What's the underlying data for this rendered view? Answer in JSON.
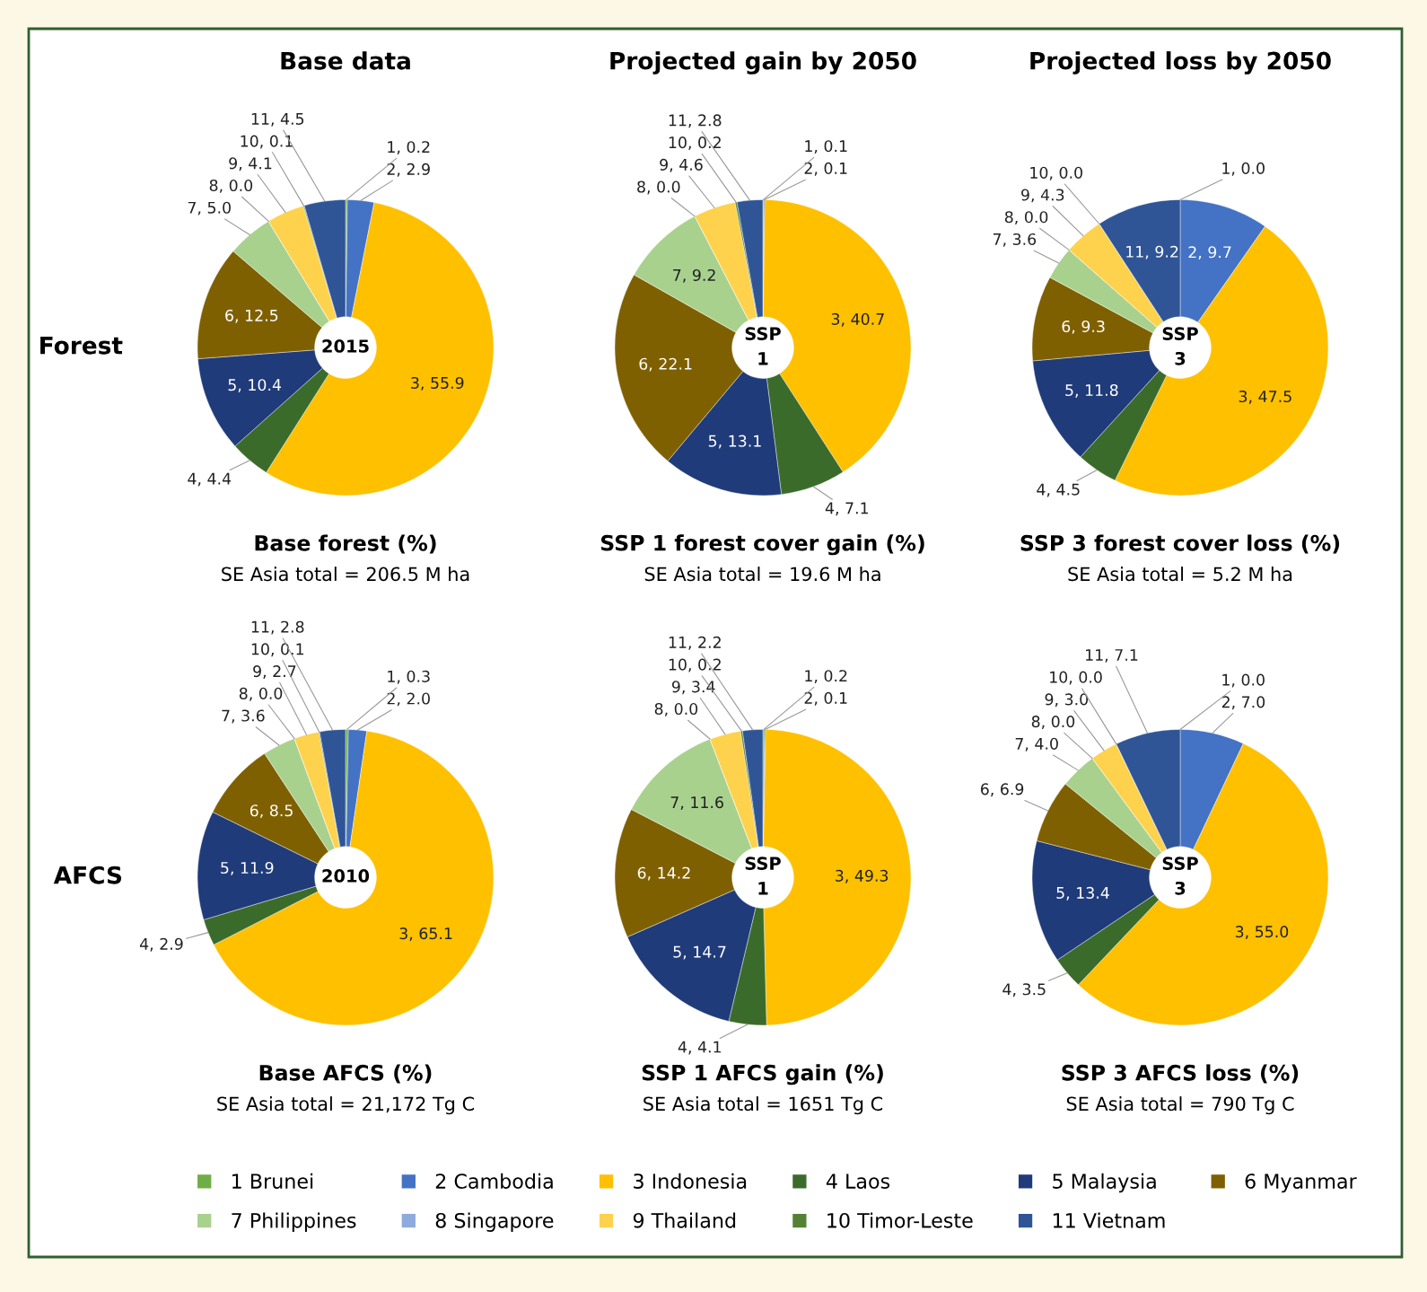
{
  "chart_data": [
    {
      "type": "donut",
      "title": "Base forest (%)",
      "subtitle": "SE Asia total = 206.5 M ha",
      "annotations": [
        "2015",
        "Base data",
        "Forest"
      ],
      "legend": "bottom",
      "categories": [
        "1 Brunei",
        "2 Cambodia",
        "3 Indonesia",
        "4 Laos",
        "5 Malaysia",
        "6 Myanmar",
        "7 Philippines",
        "8 Singapore",
        "9 Thailand",
        "10 Timor-Leste",
        "11 Vietnam"
      ],
      "values": [
        0.2,
        2.9,
        55.9,
        4.4,
        10.4,
        12.5,
        5.0,
        0.0,
        4.1,
        0.1,
        4.5
      ],
      "value_labels": [
        "1, 0.2",
        "2, 2.9",
        "3, 55.9",
        "4, 4.4",
        "5, 10.4",
        "6, 12.5",
        "7, 5.0",
        "8, 0.0",
        "9, 4.1",
        "10, 0.1",
        "11, 4.5"
      ],
      "colors": [
        "#70ad47",
        "#4472c4",
        "#ffc000",
        "#3b6b2a",
        "#203b7a",
        "#7f6000",
        "#a9d18e",
        "#8faadc",
        "#ffd24d",
        "#548235",
        "#2f5597"
      ]
    },
    {
      "type": "donut",
      "title": "SSP 1 forest cover gain (%)",
      "subtitle": "SE Asia total = 19.6 M ha",
      "annotations": [
        "SSP\n1",
        "Projected gain by 2050"
      ],
      "values": [
        0.1,
        0.1,
        40.7,
        7.1,
        13.1,
        22.1,
        9.2,
        0.0,
        4.6,
        0.2,
        2.8
      ],
      "value_labels": [
        "1, 0.1",
        "2, 0.1",
        "3, 40.7",
        "4, 7.1",
        "5, 13.1",
        "6, 22.1",
        "7, 9.2",
        "8, 0.0",
        "9, 4.6",
        "10, 0.2",
        "11, 2.8"
      ],
      "colors": [
        "#70ad47",
        "#4472c4",
        "#ffc000",
        "#3b6b2a",
        "#203b7a",
        "#7f6000",
        "#a9d18e",
        "#8faadc",
        "#ffd24d",
        "#548235",
        "#2f5597"
      ]
    },
    {
      "type": "donut",
      "title": "SSP 3 forest cover loss (%)",
      "subtitle": "SE Asia total = 5.2 M ha",
      "annotations": [
        "SSP\n3",
        "Projected loss by 2050"
      ],
      "values": [
        0.0,
        9.7,
        47.5,
        4.5,
        11.8,
        9.3,
        3.6,
        0.0,
        4.3,
        0.0,
        9.2
      ],
      "value_labels": [
        "1, 0.0",
        "2, 9.7",
        "3, 47.5",
        "4, 4.5",
        "5, 11.8",
        "6, 9.3",
        "7, 3.6",
        "8, 0.0",
        "9, 4.3",
        "10, 0.0",
        "11, 9.2"
      ],
      "colors": [
        "#70ad47",
        "#4472c4",
        "#ffc000",
        "#3b6b2a",
        "#203b7a",
        "#7f6000",
        "#a9d18e",
        "#8faadc",
        "#ffd24d",
        "#548235",
        "#2f5597"
      ]
    },
    {
      "type": "donut",
      "title": "Base AFCS (%)",
      "subtitle": "SE Asia total = 21,172 Tg C",
      "annotations": [
        "2010",
        "AFCS"
      ],
      "values": [
        0.3,
        2.0,
        65.1,
        2.9,
        11.9,
        8.5,
        3.6,
        0.0,
        2.7,
        0.1,
        2.8
      ],
      "value_labels": [
        "1, 0.3",
        "2, 2.0",
        "3, 65.1",
        "4, 2.9",
        "5, 11.9",
        "6, 8.5",
        "7, 3.6",
        "8, 0.0",
        "9, 2.7",
        "10, 0.1",
        "11, 2.8"
      ],
      "colors": [
        "#70ad47",
        "#4472c4",
        "#ffc000",
        "#3b6b2a",
        "#203b7a",
        "#7f6000",
        "#a9d18e",
        "#8faadc",
        "#ffd24d",
        "#548235",
        "#2f5597"
      ]
    },
    {
      "type": "donut",
      "title": "SSP 1 AFCS gain (%)",
      "subtitle": "SE Asia total = 1651 Tg C",
      "annotations": [
        "SSP\n1"
      ],
      "values": [
        0.2,
        0.1,
        49.3,
        4.1,
        14.7,
        14.2,
        11.6,
        0.0,
        3.4,
        0.2,
        2.2
      ],
      "value_labels": [
        "1, 0.2",
        "2, 0.1",
        "3, 49.3",
        "4, 4.1",
        "5, 14.7",
        "6, 14.2",
        "7, 11.6",
        "8, 0.0",
        "9, 3.4",
        "10, 0.2",
        "11, 2.2"
      ],
      "colors": [
        "#70ad47",
        "#4472c4",
        "#ffc000",
        "#3b6b2a",
        "#203b7a",
        "#7f6000",
        "#a9d18e",
        "#8faadc",
        "#ffd24d",
        "#548235",
        "#2f5597"
      ]
    },
    {
      "type": "donut",
      "title": "SSP 3 AFCS loss (%)",
      "subtitle": "SE Asia total = 790 Tg C",
      "annotations": [
        "SSP\n3"
      ],
      "values": [
        0.0,
        7.0,
        55.0,
        3.5,
        13.4,
        6.9,
        4.0,
        0.0,
        3.0,
        0.0,
        7.1
      ],
      "value_labels": [
        "1, 0.0",
        "2, 7.0",
        "3, 55.0",
        "4, 3.5",
        "5, 13.4",
        "6, 6.9",
        "7, 4.0",
        "8, 0.0",
        "9, 3.0",
        "10, 0.0",
        "11, 7.1"
      ],
      "colors": [
        "#70ad47",
        "#4472c4",
        "#ffc000",
        "#3b6b2a",
        "#203b7a",
        "#7f6000",
        "#a9d18e",
        "#8faadc",
        "#ffd24d",
        "#548235",
        "#2f5597"
      ]
    }
  ]
}
